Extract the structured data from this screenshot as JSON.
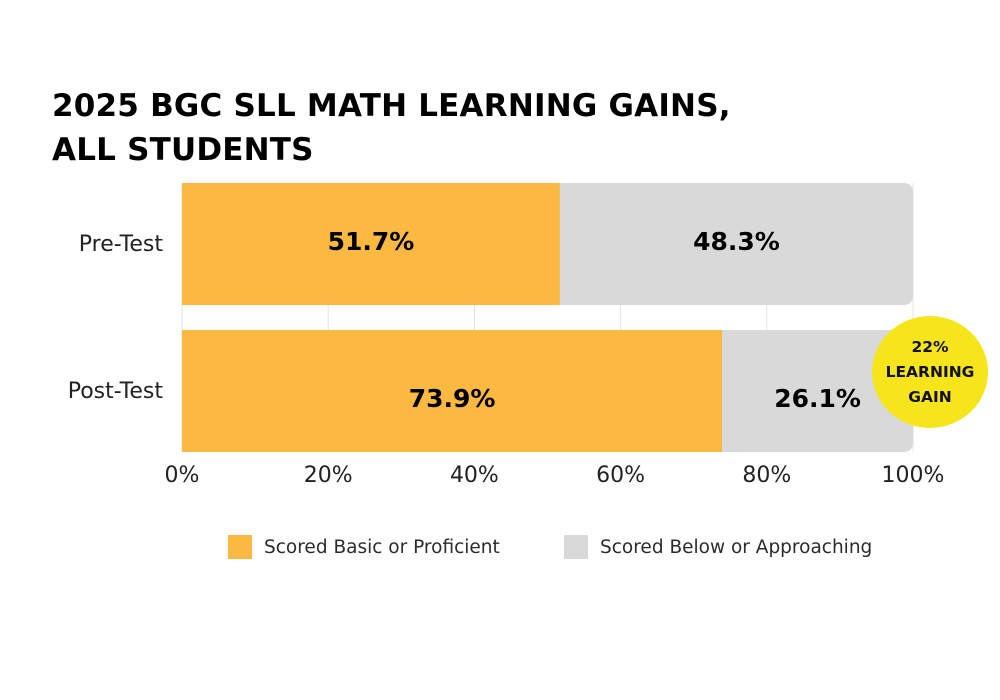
{
  "title_lines": [
    "2025 BGC SLL MATH LEARNING GAINS,",
    "ALL STUDENTS"
  ],
  "badge": {
    "lines": [
      "22%",
      "LEARNING",
      "GAIN"
    ],
    "color": "#f6e51a"
  },
  "colors": {
    "proficient": "#fbb941",
    "below": "#d9d9d9",
    "grid": "#e4e4e4"
  },
  "chart_data": {
    "type": "bar",
    "orientation": "horizontal",
    "stacked": true,
    "categories": [
      "Pre-Test",
      "Post-Test"
    ],
    "series": [
      {
        "name": "Scored Basic or Proficient",
        "values": [
          51.7,
          73.9
        ],
        "labels": [
          "51.7%",
          "73.9%"
        ],
        "color": "#fbb941"
      },
      {
        "name": "Scored Below or Approaching",
        "values": [
          48.3,
          26.1
        ],
        "labels": [
          "48.3%",
          "26.1%"
        ],
        "color": "#d9d9d9"
      }
    ],
    "xlim": [
      0,
      100
    ],
    "x_ticks": [
      0,
      20,
      40,
      60,
      80,
      100
    ],
    "x_tick_labels": [
      "0%",
      "20%",
      "40%",
      "60%",
      "80%",
      "100%"
    ],
    "grid": true,
    "legend_position": "bottom"
  }
}
